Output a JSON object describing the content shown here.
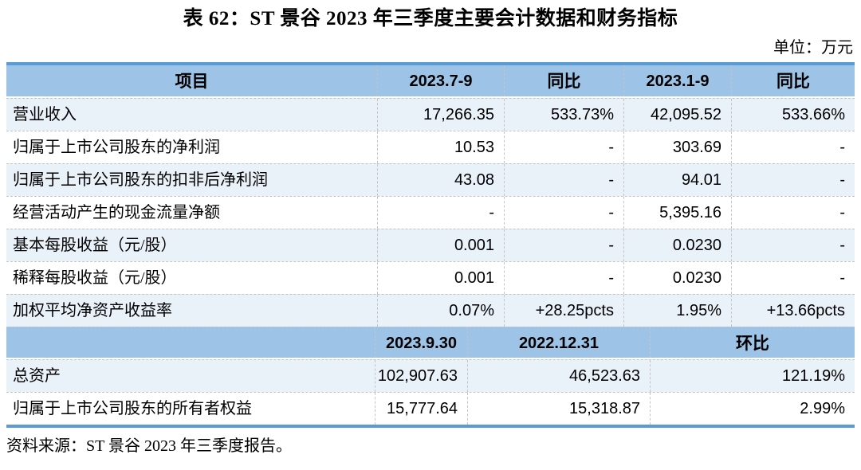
{
  "title": "表 62：ST 景谷 2023 年三季度主要会计数据和财务指标",
  "unit_note": "单位：万元",
  "source_note": "资料来源：ST 景谷 2023 年三季度报告。",
  "colors": {
    "table-border": "#5B9BD5",
    "header-bg": "#9DC3E6",
    "band-bg": "#E9F1F9",
    "grid-line": "#C4C4C4",
    "text": "#000000"
  },
  "table": {
    "section_quarter": {
      "headers": [
        "项目",
        "2023.7-9",
        "同比",
        "2023.1-9",
        "同比"
      ],
      "rows": [
        [
          "营业收入",
          "17,266.35",
          "533.73%",
          "42,095.52",
          "533.66%"
        ],
        [
          "归属于上市公司股东的净利润",
          "10.53",
          "-",
          "303.69",
          "-"
        ],
        [
          "归属于上市公司股东的扣非后净利润",
          "43.08",
          "-",
          "94.01",
          "-"
        ],
        [
          "经营活动产生的现金流量净额",
          "-",
          "-",
          "5,395.16",
          "-"
        ],
        [
          "基本每股收益（元/股）",
          "0.001",
          "-",
          "0.0230",
          "-"
        ],
        [
          "稀释每股收益（元/股）",
          "0.001",
          "-",
          "0.0230",
          "-"
        ],
        [
          "加权平均净资产收益率",
          "0.07%",
          "+28.25pcts",
          "1.95%",
          "+13.66pcts"
        ]
      ]
    },
    "section_balance": {
      "headers": [
        "",
        "2023.9.30",
        "2022.12.31",
        "环比"
      ],
      "rows": [
        [
          "总资产",
          "102,907.63",
          "46,523.63",
          "121.19%"
        ],
        [
          "归属于上市公司股东的所有者权益",
          "15,777.64",
          "15,318.87",
          "2.99%"
        ]
      ]
    }
  }
}
